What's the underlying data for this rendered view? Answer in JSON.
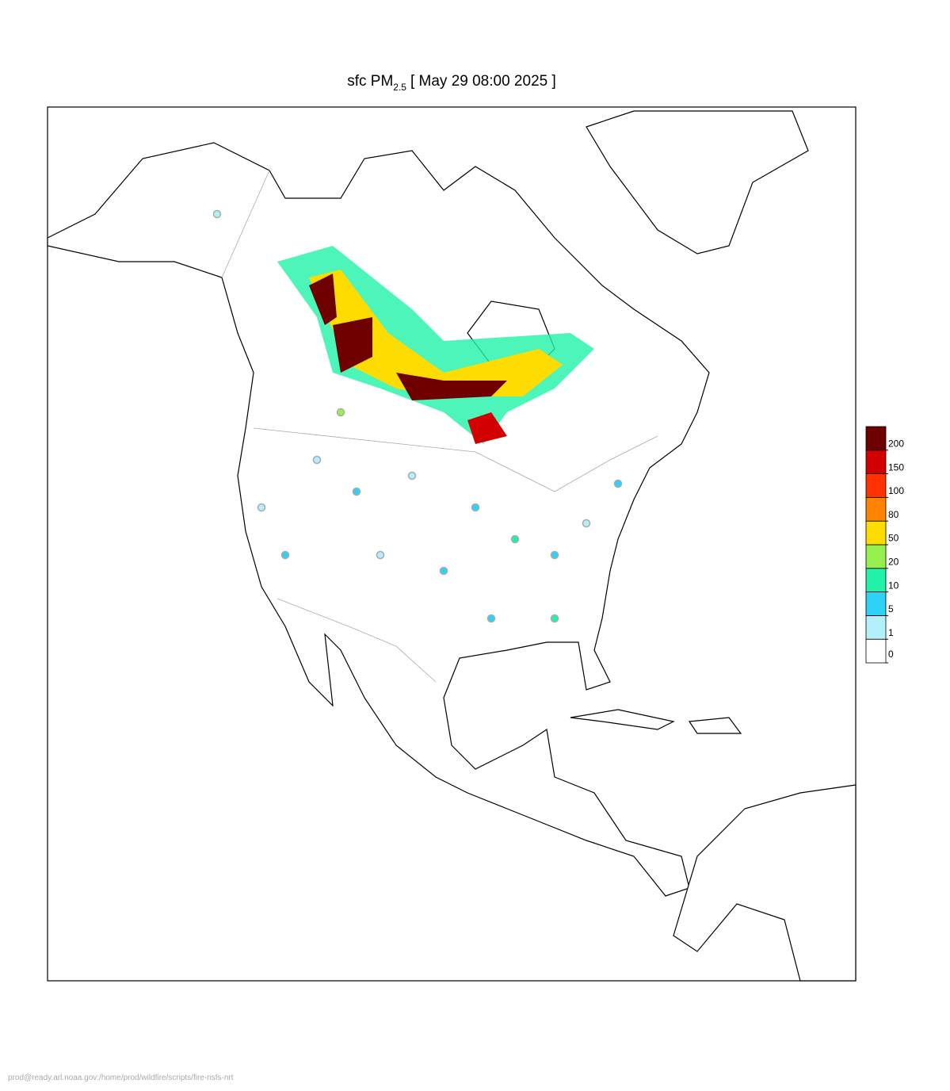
{
  "title": {
    "prefix": "sfc PM",
    "subscript": "2.5",
    "suffix": "[ May 29 08:00 2025 ]"
  },
  "legend": {
    "levels": [
      0,
      1,
      5,
      10,
      20,
      50,
      80,
      100,
      150,
      200
    ],
    "colors": [
      "#ffffff",
      "#b3f0fa",
      "#2ed2f5",
      "#22f2a8",
      "#96f050",
      "#ffdc00",
      "#ff8200",
      "#ff3200",
      "#d20000",
      "#6e0000"
    ]
  },
  "footer": "prod@ready.arl.noaa.gov:/home/prod/wildfire/scripts/fire-nsfs-nrt"
}
